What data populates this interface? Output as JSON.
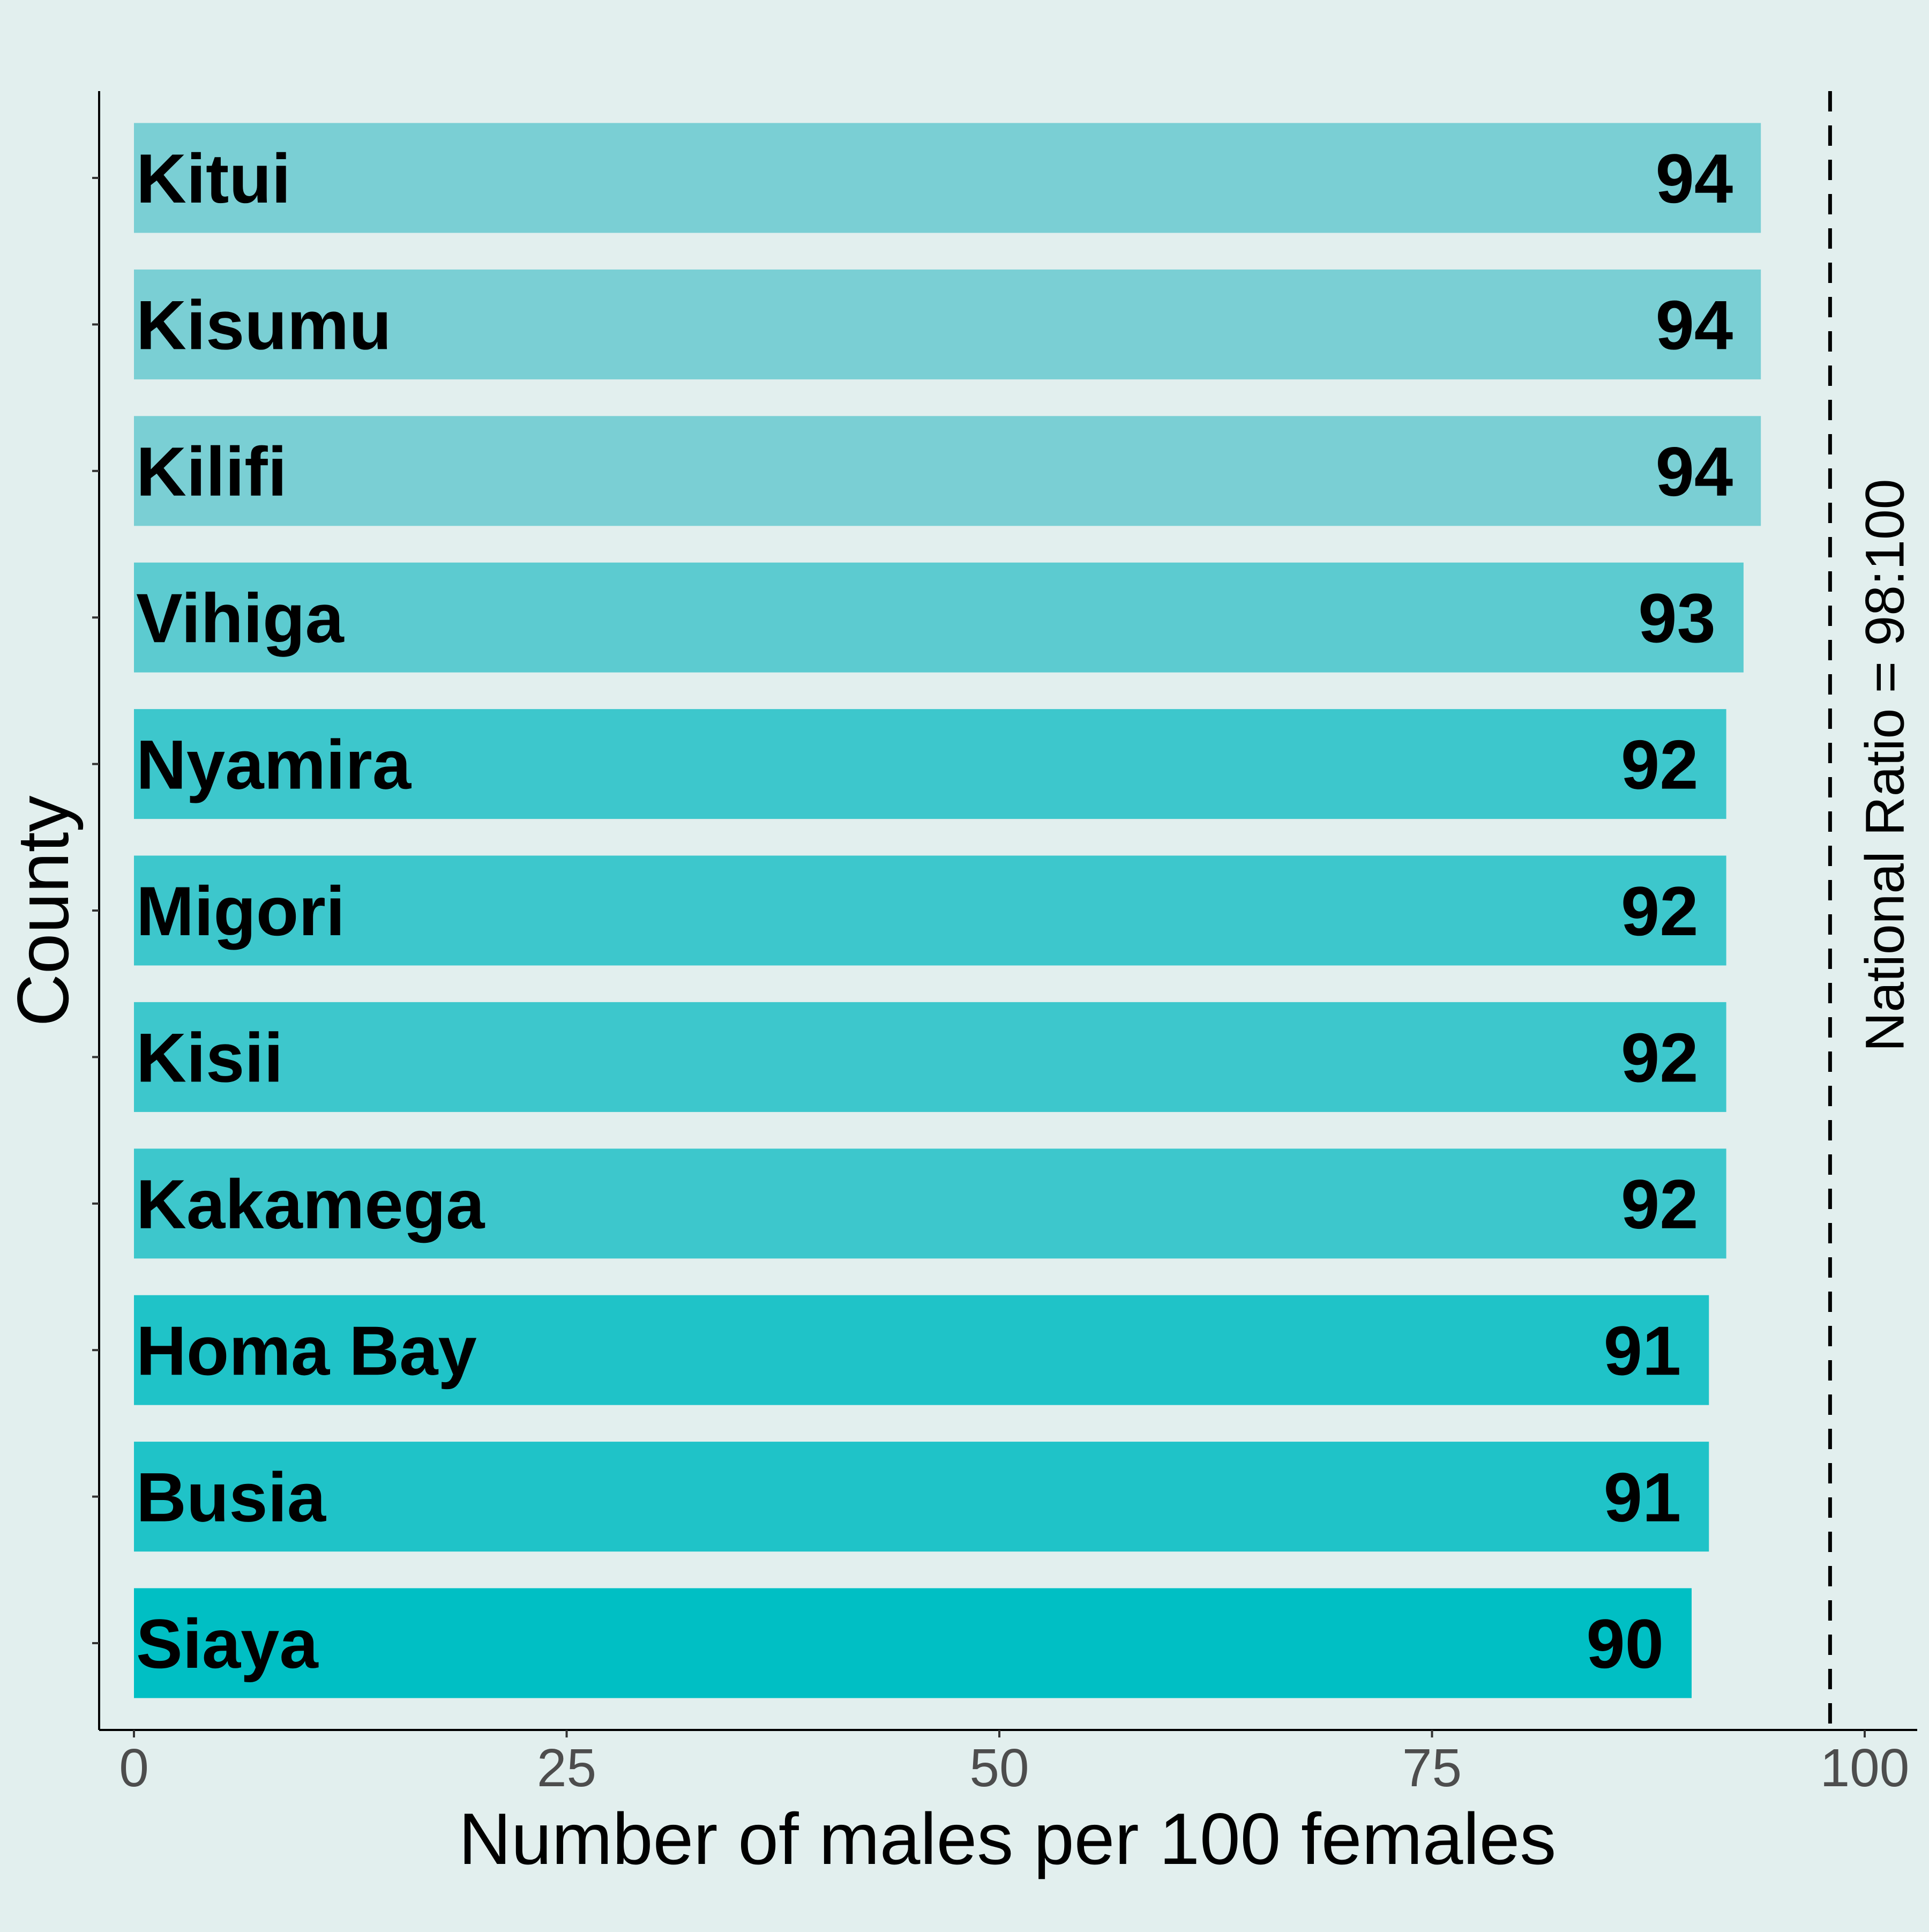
{
  "chart_data": {
    "type": "bar",
    "orientation": "horizontal",
    "categories": [
      "Kitui",
      "Kisumu",
      "Kilifi",
      "Vihiga",
      "Nyamira",
      "Migori",
      "Kisii",
      "Kakamega",
      "Homa Bay",
      "Busia",
      "Siaya"
    ],
    "values": [
      94,
      94,
      94,
      93,
      92,
      92,
      92,
      92,
      91,
      91,
      90
    ],
    "xlabel": "Number of males per 100 females",
    "ylabel": "County",
    "xlim": [
      0,
      100
    ],
    "xticks": [
      0,
      25,
      50,
      75,
      100
    ],
    "reference_line": {
      "value": 98,
      "style": "dashed",
      "label": "National Ratio = 98:100"
    },
    "colors": {
      "background": "#e2efee",
      "bar_light": "#7acfd4",
      "bar_dark": "#00bfc4",
      "axis": "#000000",
      "tick_label": "#4d4d4d"
    },
    "grid": false,
    "legend": "none"
  }
}
